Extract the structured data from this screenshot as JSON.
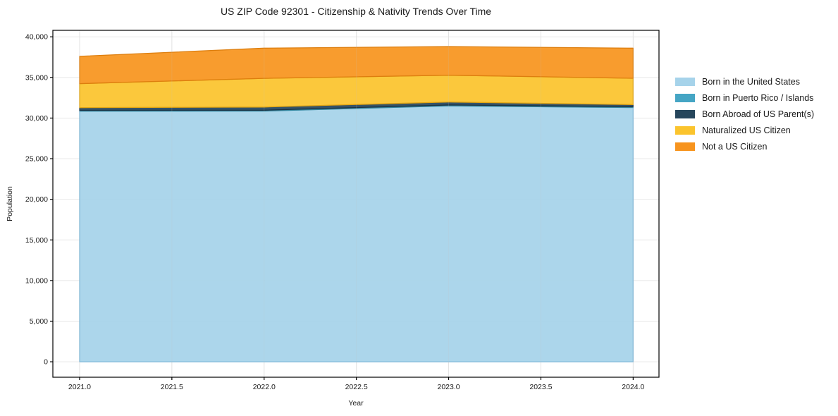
{
  "figure": {
    "background": "#ffffff"
  },
  "chart_data": {
    "type": "area",
    "stacked": true,
    "title": "US ZIP Code 92301 - Citizenship & Nativity Trends Over Time",
    "xlabel": "Year",
    "ylabel": "Population",
    "x": [
      2021,
      2022,
      2023,
      2024
    ],
    "series": [
      {
        "name": "Born in the United States",
        "color": "#a6d3ea",
        "edge": "#7fb9da",
        "values": [
          30850,
          30860,
          31500,
          31300
        ]
      },
      {
        "name": "Born in Puerto Rico / Islands",
        "color": "#45a5c4",
        "edge": "#35879f",
        "values": [
          100,
          110,
          110,
          100
        ]
      },
      {
        "name": "Born Abroad of US Parent(s)",
        "color": "#26465c",
        "edge": "#1b3344",
        "values": [
          330,
          390,
          360,
          250
        ]
      },
      {
        "name": "Naturalized US Citizen",
        "color": "#fbc42d",
        "edge": "#e2a513",
        "values": [
          2960,
          3530,
          3300,
          3250
        ]
      },
      {
        "name": "Not a US Citizen",
        "color": "#f7941e",
        "edge": "#dd7e0e",
        "values": [
          3360,
          3710,
          3530,
          3700
        ]
      }
    ],
    "totals_by_year": [
      37600,
      38600,
      38800,
      38600
    ],
    "xticks": {
      "values": [
        2021.0,
        2021.5,
        2022.0,
        2022.5,
        2023.0,
        2023.5,
        2024.0
      ],
      "labels": [
        "2021.0",
        "2021.5",
        "2022.0",
        "2022.5",
        "2023.0",
        "2023.5",
        "2024.0"
      ]
    },
    "yticks": {
      "values": [
        0,
        5000,
        10000,
        15000,
        20000,
        25000,
        30000,
        35000,
        40000
      ],
      "labels": [
        "0",
        "5,000",
        "10,000",
        "15,000",
        "20,000",
        "25,000",
        "30,000",
        "35,000",
        "40,000"
      ]
    },
    "xlim": [
      2020.855,
      2024.14
    ],
    "ylim": [
      -1900,
      40800
    ],
    "grid": true,
    "grid_color": "#e8e8e8",
    "spine_color": "#000000",
    "tick_label_color": "#1a1a1a",
    "legend_position": "right-outside"
  }
}
